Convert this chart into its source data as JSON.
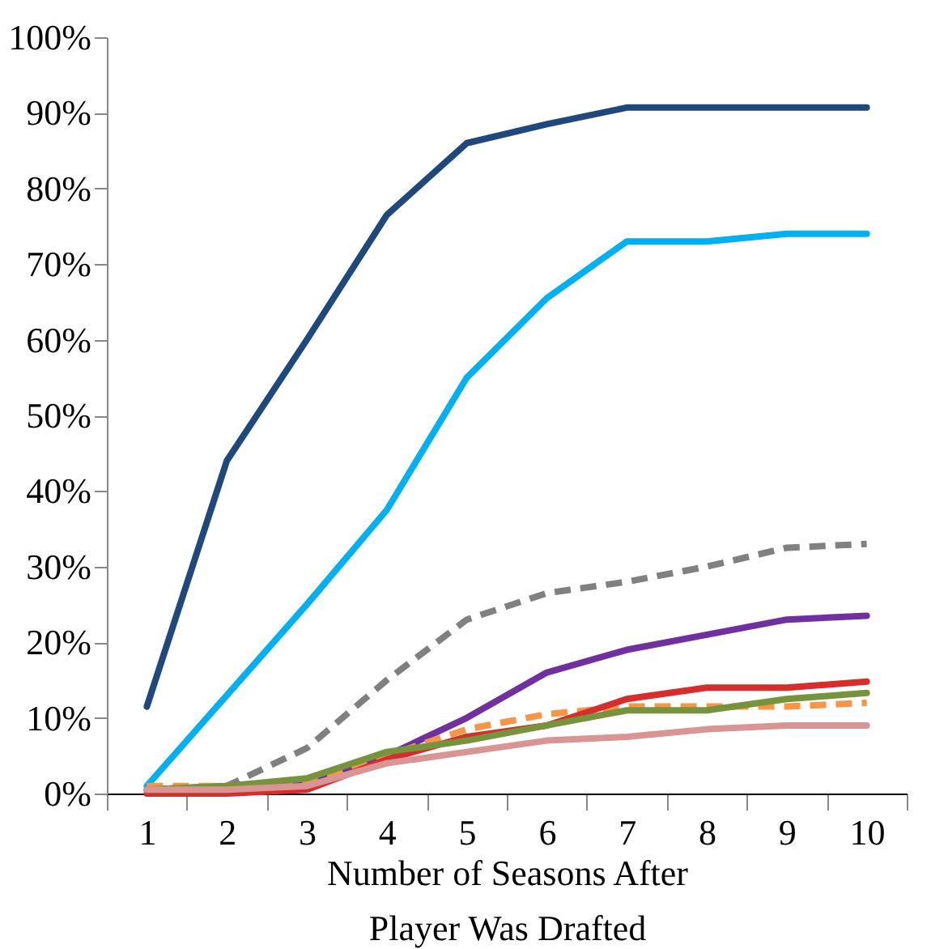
{
  "chart_data": {
    "type": "line",
    "xlabel": "Number of Seasons After\nPlayer Was Drafted",
    "categories": [
      "1",
      "2",
      "3",
      "4",
      "5",
      "6",
      "7",
      "8",
      "9",
      "10"
    ],
    "ylim": [
      0,
      100
    ],
    "yticks": [
      {
        "value": 0,
        "label": "0%"
      },
      {
        "value": 10,
        "label": "10%"
      },
      {
        "value": 20,
        "label": "20%"
      },
      {
        "value": 30,
        "label": "30%"
      },
      {
        "value": 40,
        "label": "40%"
      },
      {
        "value": 50,
        "label": "50%"
      },
      {
        "value": 60,
        "label": "60%"
      },
      {
        "value": 70,
        "label": "70%"
      },
      {
        "value": 80,
        "label": "80%"
      },
      {
        "value": 90,
        "label": "90%"
      },
      {
        "value": 100,
        "label": "100%"
      }
    ],
    "grid": false,
    "marker": "none",
    "series": [
      {
        "color": "#1f497d",
        "line_style": "solid",
        "values": [
          11.5,
          44,
          60,
          76.5,
          86,
          88.5,
          90.7,
          90.7,
          90.7,
          90.7
        ]
      },
      {
        "color": "#00b0f0",
        "line_style": "solid",
        "values": [
          1,
          13,
          25,
          37.5,
          55,
          65.5,
          73,
          73,
          74,
          74
        ]
      },
      {
        "color": "#808080",
        "line_style": "dashed",
        "values": [
          0,
          1,
          6,
          15,
          23,
          26.5,
          28,
          30,
          32.5,
          33
        ]
      },
      {
        "color": "#7030a0",
        "line_style": "solid",
        "values": [
          0.5,
          1,
          1.5,
          5,
          10,
          16,
          19,
          21,
          23,
          23.5
        ]
      },
      {
        "color": "#f79646",
        "line_style": "dashed",
        "values": [
          1,
          1,
          1.5,
          5,
          8.5,
          10.5,
          11.5,
          11.5,
          11.5,
          12
        ]
      },
      {
        "color": "#d62d2d",
        "line_style": "solid",
        "values": [
          0,
          0,
          0.5,
          4.5,
          7.5,
          9,
          12.5,
          14,
          14,
          14.8
        ]
      },
      {
        "color": "#77933c",
        "line_style": "solid",
        "values": [
          0.5,
          1,
          2,
          5.5,
          7,
          9,
          11,
          11,
          12.5,
          13.3
        ]
      },
      {
        "color": "#d99594",
        "line_style": "solid",
        "values": [
          0.5,
          0.5,
          1,
          4,
          5.5,
          7,
          7.5,
          8.5,
          9,
          9
        ]
      }
    ]
  }
}
